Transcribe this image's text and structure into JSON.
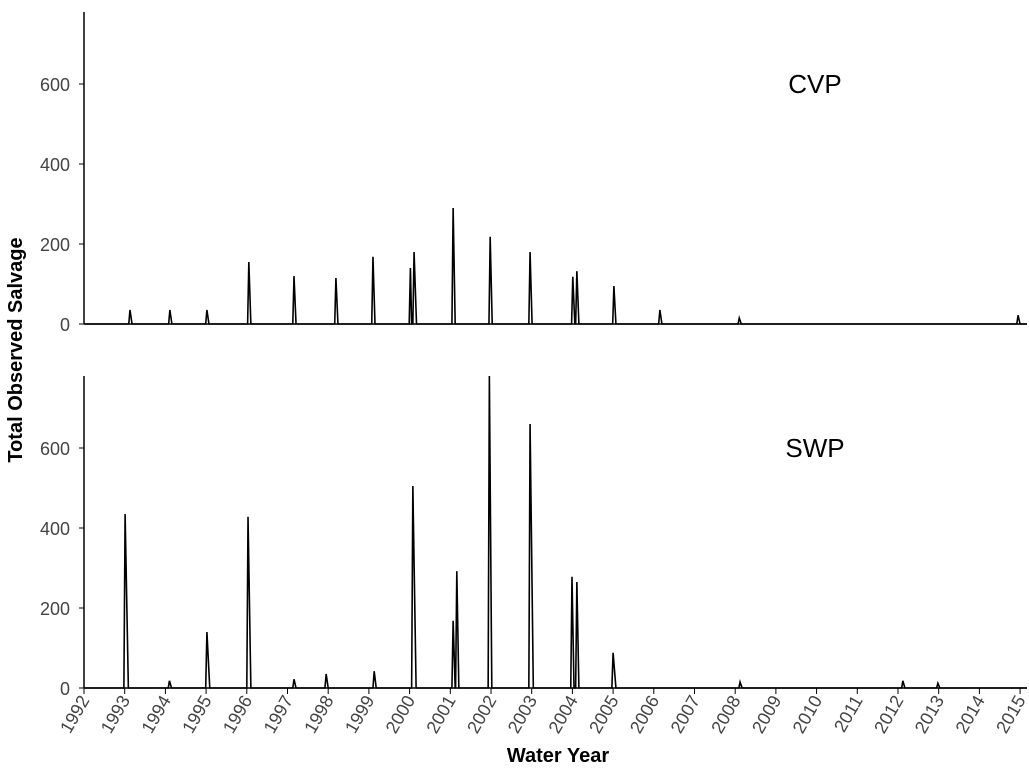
{
  "chart_data": [
    {
      "type": "line",
      "annotation": "CVP",
      "ylabel": "Total Observed Salvage",
      "xlim": [
        1992,
        2015.17
      ],
      "ylim": [
        0,
        780
      ],
      "yticks": [
        0,
        200,
        400,
        600
      ],
      "x": [
        1992,
        1993.1,
        1993.13,
        1993.18,
        1994.08,
        1994.11,
        1994.16,
        1994.99,
        1995.02,
        1995.07,
        1996.02,
        1996.05,
        1996.1,
        1997.13,
        1997.16,
        1997.21,
        1998.16,
        1998.19,
        1998.24,
        1999.07,
        1999.1,
        1999.15,
        1999.99,
        2000.02,
        2000.05,
        2000.08,
        2000.11,
        2000.17,
        2001.04,
        2001.07,
        2001.12,
        2001.95,
        2001.98,
        2002.03,
        2002.93,
        2002.96,
        2003.01,
        2003.98,
        2004.01,
        2004.06,
        2004.08,
        2004.11,
        2004.16,
        2004.99,
        2005.02,
        2005.07,
        2006.12,
        2006.15,
        2006.2,
        2008.07,
        2008.1,
        2008.15,
        2014.92,
        2014.95,
        2015.0,
        2015.17
      ],
      "series": [
        {
          "color": "#000000",
          "values": [
            0,
            0,
            35,
            0,
            0,
            35,
            0,
            0,
            35,
            0,
            0,
            155,
            0,
            0,
            120,
            0,
            0,
            115,
            0,
            0,
            168,
            0,
            0,
            140,
            0,
            0,
            180,
            0,
            0,
            290,
            0,
            0,
            218,
            0,
            0,
            180,
            0,
            0,
            118,
            0,
            0,
            132,
            0,
            0,
            95,
            0,
            0,
            35,
            0,
            0,
            15,
            0,
            0,
            22,
            0,
            0
          ]
        }
      ]
    },
    {
      "type": "line",
      "annotation": "SWP",
      "xlabel": "Water Year",
      "xlim": [
        1992,
        2015.17
      ],
      "ylim": [
        0,
        780
      ],
      "yticks": [
        0,
        200,
        400,
        600
      ],
      "xticks": [
        1992,
        1993,
        1994,
        1995,
        1996,
        1997,
        1998,
        1999,
        2000,
        2001,
        2002,
        2003,
        2004,
        2005,
        2006,
        2007,
        2008,
        2009,
        2010,
        2011,
        2012,
        2013,
        2014,
        2015
      ],
      "x": [
        1992,
        1992.98,
        1993.01,
        1993.09,
        1994.07,
        1994.1,
        1994.15,
        1994.99,
        1995.02,
        1995.09,
        1996.0,
        1996.03,
        1996.1,
        1997.13,
        1997.16,
        1997.21,
        1997.92,
        1997.95,
        1998.0,
        1999.1,
        1999.13,
        1999.18,
        2000.05,
        2000.08,
        2000.16,
        2001.04,
        2001.07,
        2001.12,
        2001.13,
        2001.16,
        2001.21,
        2001.93,
        2001.96,
        2002.02,
        2002.93,
        2002.96,
        2003.04,
        2003.96,
        2003.99,
        2004.04,
        2004.08,
        2004.11,
        2004.16,
        2004.97,
        2005.0,
        2005.07,
        2008.09,
        2008.12,
        2008.17,
        2012.09,
        2012.12,
        2012.17,
        2012.95,
        2012.98,
        2013.03,
        2015.17
      ],
      "series": [
        {
          "color": "#000000",
          "values": [
            0,
            0,
            435,
            0,
            0,
            18,
            0,
            0,
            140,
            0,
            0,
            428,
            0,
            0,
            22,
            0,
            0,
            35,
            0,
            0,
            42,
            0,
            0,
            505,
            0,
            0,
            168,
            0,
            0,
            292,
            0,
            0,
            780,
            0,
            0,
            660,
            0,
            0,
            278,
            0,
            0,
            265,
            0,
            0,
            88,
            0,
            0,
            15,
            0,
            0,
            18,
            0,
            0,
            12,
            0,
            0
          ]
        }
      ]
    }
  ]
}
